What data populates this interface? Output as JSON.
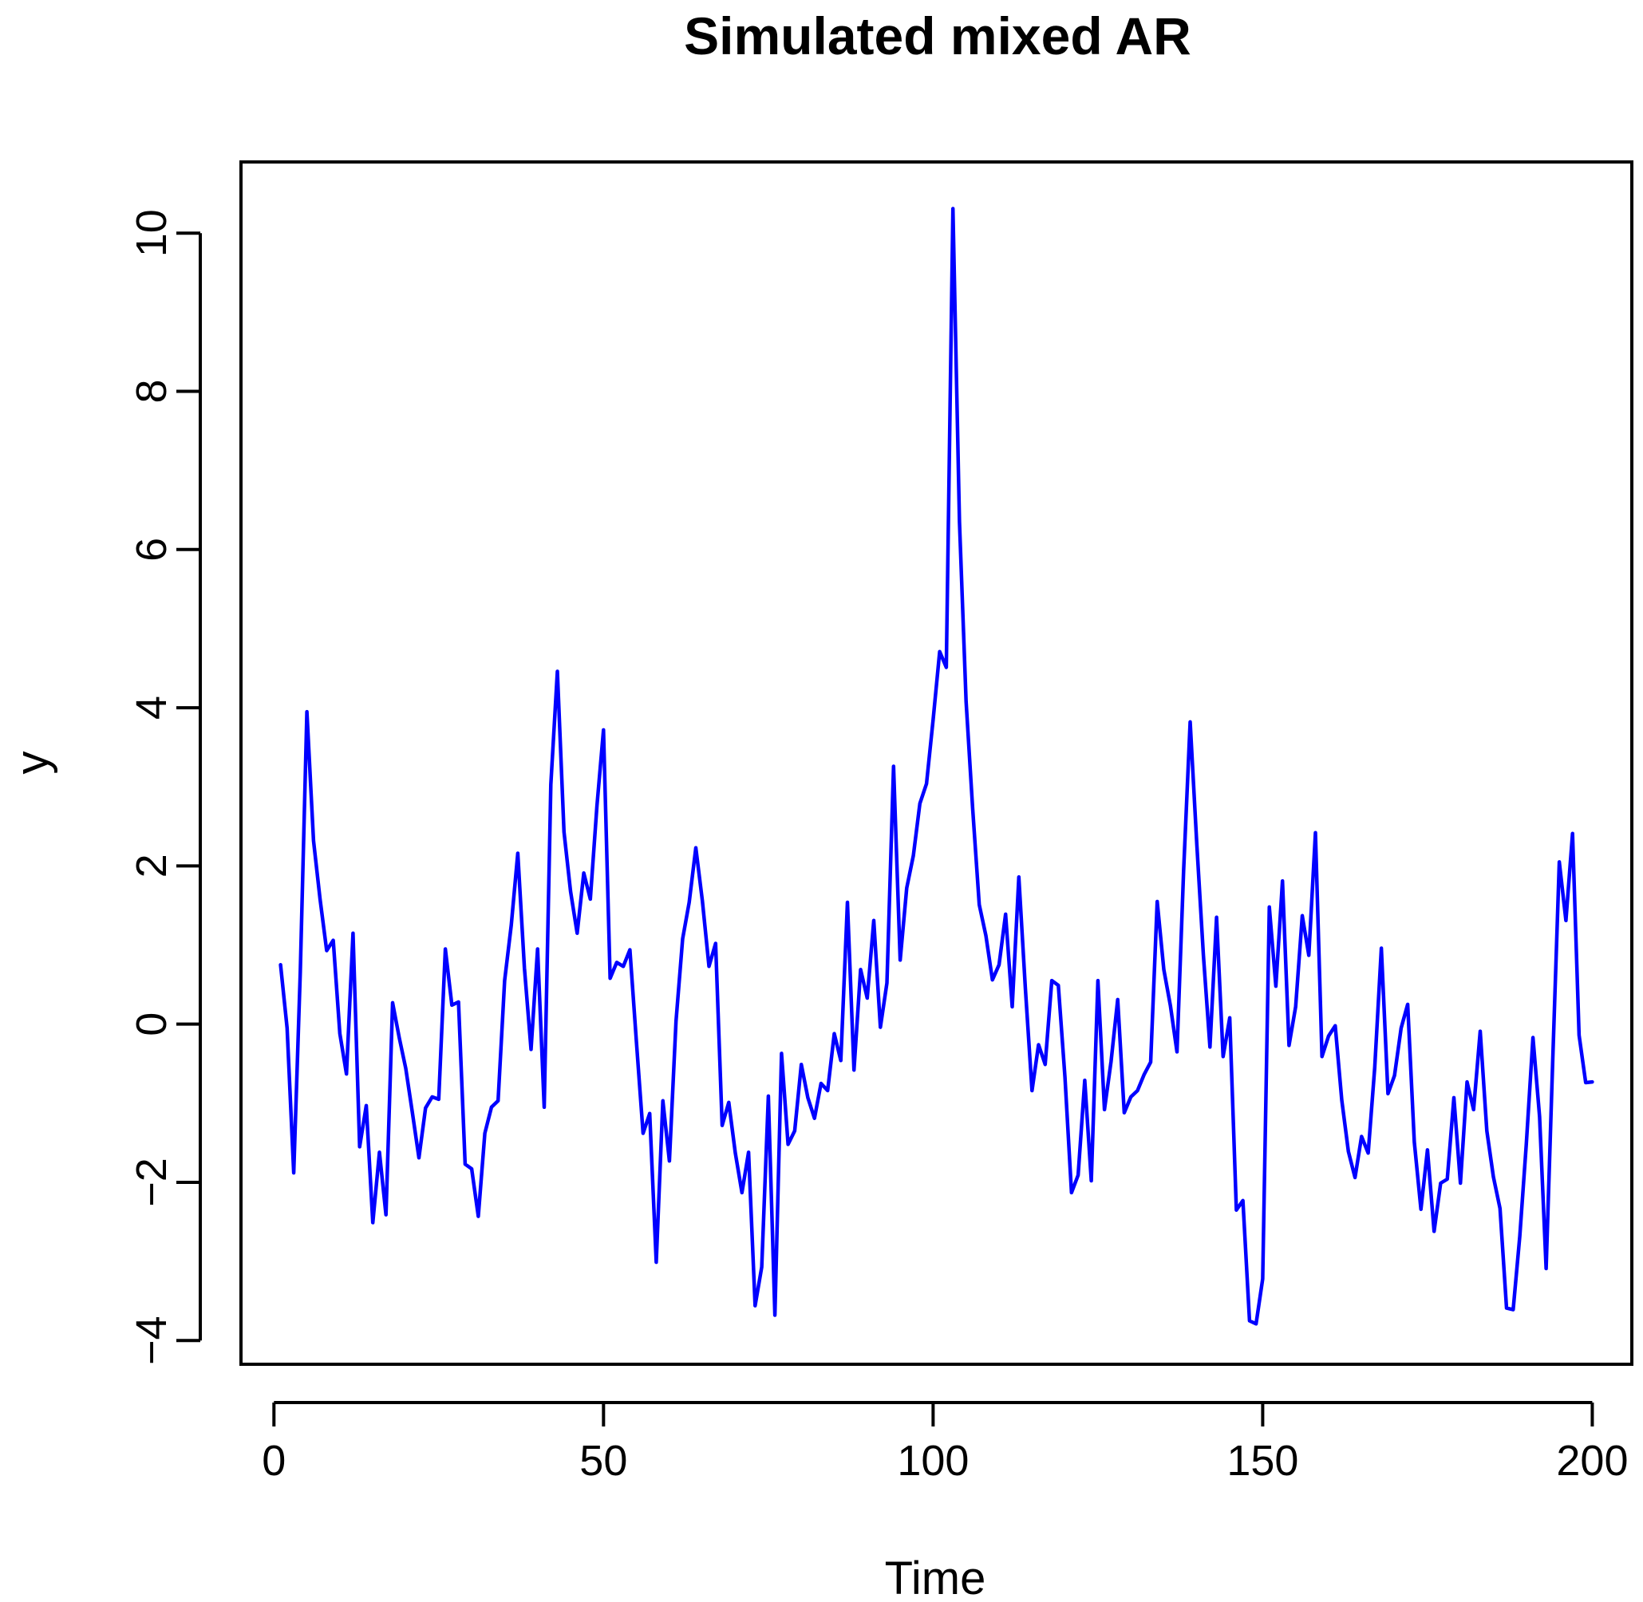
{
  "chart_data": {
    "type": "line",
    "title": "Simulated mixed AR",
    "xlabel": "Time",
    "ylabel": "y",
    "xlim": [
      -5,
      206
    ],
    "ylim": [
      -4.3,
      10.9
    ],
    "x_ticks": [
      0,
      50,
      100,
      150,
      200
    ],
    "y_ticks": [
      -4,
      -2,
      0,
      2,
      4,
      6,
      8,
      10
    ],
    "grid": false,
    "line_color": "#0000ff",
    "series": [
      {
        "x_start": 1,
        "x_step": 1,
        "values": [
          0.75,
          -0.05,
          -1.88,
          0.65,
          3.95,
          2.32,
          1.58,
          0.93,
          1.06,
          -0.12,
          -0.63,
          1.15,
          -1.55,
          -1.03,
          -2.51,
          -1.62,
          -2.41,
          0.27,
          -0.17,
          -0.56,
          -1.12,
          -1.69,
          -1.06,
          -0.92,
          -0.95,
          0.95,
          0.24,
          0.28,
          -1.77,
          -1.83,
          -2.43,
          -1.38,
          -1.05,
          -0.97,
          0.55,
          1.25,
          2.16,
          0.71,
          -0.32,
          0.95,
          -1.05,
          3.03,
          4.46,
          2.43,
          1.68,
          1.15,
          1.91,
          1.58,
          2.76,
          3.72,
          0.58,
          0.78,
          0.73,
          0.94,
          -0.23,
          -1.38,
          -1.13,
          -3.01,
          -0.97,
          -1.73,
          0.04,
          1.08,
          1.54,
          2.23,
          1.56,
          0.73,
          1.02,
          -1.28,
          -0.99,
          -1.63,
          -2.13,
          -1.62,
          -3.56,
          -3.07,
          -0.91,
          -3.68,
          -0.37,
          -1.52,
          -1.35,
          -0.51,
          -0.93,
          -1.19,
          -0.75,
          -0.84,
          -0.12,
          -0.46,
          1.54,
          -0.58,
          0.69,
          0.33,
          1.31,
          -0.04,
          0.52,
          3.26,
          0.81,
          1.72,
          2.13,
          2.79,
          3.04,
          3.85,
          4.71,
          4.51,
          10.31,
          6.35,
          4.08,
          2.73,
          1.51,
          1.12,
          0.56,
          0.75,
          1.39,
          0.22,
          1.86,
          0.45,
          -0.84,
          -0.26,
          -0.51,
          0.55,
          0.49,
          -0.67,
          -2.13,
          -1.91,
          -0.71,
          -1.98,
          0.55,
          -1.08,
          -0.47,
          0.31,
          -1.12,
          -0.92,
          -0.84,
          -0.64,
          -0.48,
          1.55,
          0.69,
          0.23,
          -0.35,
          1.94,
          3.82,
          2.28,
          0.87,
          -0.29,
          1.35,
          -0.41,
          0.08,
          -2.35,
          -2.23,
          -3.75,
          -3.79,
          -3.22,
          1.48,
          0.48,
          1.81,
          -0.27,
          0.22,
          1.37,
          0.87,
          2.42,
          -0.41,
          -0.15,
          -0.02,
          -0.96,
          -1.61,
          -1.94,
          -1.42,
          -1.63,
          -0.55,
          0.96,
          -0.88,
          -0.65,
          -0.05,
          0.25,
          -1.49,
          -2.34,
          -1.59,
          -2.62,
          -2.01,
          -1.96,
          -0.93,
          -2.01,
          -0.73,
          -1.08,
          -0.09,
          -1.35,
          -1.93,
          -2.33,
          -3.59,
          -3.61,
          -2.68,
          -1.51,
          -0.17,
          -1.17,
          -3.09,
          -0.45,
          2.05,
          1.31,
          2.41,
          -0.14,
          -0.74,
          -0.73
        ]
      }
    ]
  }
}
